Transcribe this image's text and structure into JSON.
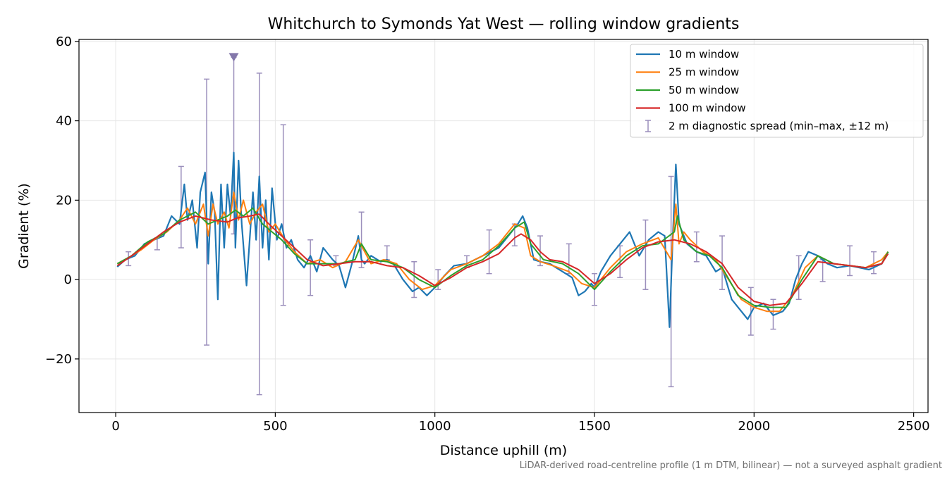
{
  "chart_data": {
    "type": "line",
    "title": "Whitchurch to Symonds Yat West — rolling window gradients",
    "xlabel": "Distance uphill (m)",
    "ylabel": "Gradient (%)",
    "xlim": [
      -115,
      2545
    ],
    "ylim": [
      -33.5,
      60.5
    ],
    "x_ticks": [
      0,
      500,
      1000,
      1500,
      2000,
      2500
    ],
    "x_tick_labels": [
      "0",
      "500",
      "1000",
      "1500",
      "2000",
      "2500"
    ],
    "y_ticks": [
      -20,
      0,
      20,
      40,
      60
    ],
    "y_tick_labels": [
      "−20",
      "0",
      "20",
      "40",
      "60"
    ],
    "grid": true,
    "legend_position": "top-right",
    "footnote": "LiDAR-derived road-centreline profile (1 m DTM, bilinear) — not a surveyed asphalt gradient",
    "series": [
      {
        "name": "10 m window",
        "color": "#1f77b4",
        "x": [
          5,
          30,
          60,
          90,
          120,
          150,
          175,
          200,
          215,
          225,
          240,
          255,
          265,
          280,
          290,
          300,
          310,
          320,
          330,
          340,
          350,
          360,
          370,
          375,
          385,
          395,
          410,
          430,
          440,
          450,
          460,
          470,
          480,
          490,
          505,
          520,
          535,
          550,
          570,
          590,
          610,
          630,
          650,
          680,
          700,
          720,
          740,
          760,
          770,
          780,
          800,
          830,
          850,
          870,
          900,
          930,
          950,
          975,
          1000,
          1030,
          1060,
          1100,
          1150,
          1200,
          1240,
          1260,
          1275,
          1290,
          1310,
          1330,
          1360,
          1400,
          1430,
          1450,
          1470,
          1490,
          1500,
          1520,
          1550,
          1580,
          1610,
          1640,
          1670,
          1700,
          1720,
          1735,
          1745,
          1755,
          1765,
          1775,
          1790,
          1820,
          1850,
          1880,
          1900,
          1930,
          1960,
          1980,
          2000,
          2030,
          2060,
          2090,
          2110,
          2130,
          2150,
          2170,
          2200,
          2230,
          2260,
          2300,
          2330,
          2360,
          2400,
          2420
        ],
        "y": [
          3.2,
          5.0,
          6.0,
          9.0,
          10.0,
          11.0,
          16.0,
          14.0,
          24.0,
          15.0,
          20.0,
          8.0,
          22.0,
          27.0,
          4.0,
          22.0,
          17.0,
          -5.0,
          24.0,
          8.0,
          24.0,
          16.0,
          32.0,
          8.0,
          30.0,
          14.0,
          -1.5,
          22.0,
          10.0,
          26.0,
          8.0,
          20.0,
          5.0,
          23.0,
          10.0,
          14.0,
          8.0,
          10.0,
          5.0,
          3.0,
          6.0,
          2.0,
          8.0,
          5.0,
          3.5,
          -2.0,
          4.0,
          11.0,
          5.0,
          4.0,
          6.0,
          4.5,
          5.0,
          4.0,
          0.0,
          -3.0,
          -2.0,
          -4.0,
          -2.0,
          1.0,
          3.5,
          4.0,
          6.0,
          8.0,
          12.0,
          14.0,
          16.0,
          13.0,
          5.0,
          4.5,
          4.0,
          2.0,
          0.5,
          -4.0,
          -3.0,
          -1.0,
          -2.0,
          2.0,
          6.0,
          9.0,
          12.0,
          6.0,
          10.0,
          12.0,
          11.0,
          -12.0,
          10.0,
          29.0,
          14.0,
          12.0,
          9.0,
          7.0,
          6.0,
          2.0,
          3.0,
          -5.0,
          -8.0,
          -10.0,
          -7.0,
          -6.0,
          -9.0,
          -8.0,
          -6.0,
          0.0,
          4.0,
          7.0,
          6.0,
          4.0,
          3.0,
          3.5,
          3.0,
          2.5,
          4.0,
          7.0
        ]
      },
      {
        "name": "25 m window",
        "color": "#ff7f0e",
        "x": [
          5,
          40,
          80,
          120,
          160,
          200,
          225,
          250,
          275,
          290,
          305,
          320,
          340,
          355,
          370,
          385,
          400,
          420,
          440,
          460,
          480,
          500,
          530,
          560,
          600,
          640,
          680,
          720,
          760,
          800,
          840,
          880,
          920,
          960,
          1000,
          1050,
          1100,
          1150,
          1200,
          1250,
          1280,
          1300,
          1330,
          1370,
          1420,
          1460,
          1500,
          1550,
          1600,
          1650,
          1700,
          1740,
          1755,
          1765,
          1780,
          1800,
          1840,
          1880,
          1920,
          1960,
          2000,
          2040,
          2080,
          2120,
          2160,
          2200,
          2250,
          2300,
          2350,
          2400,
          2420
        ],
        "y": [
          4.0,
          5.5,
          7.5,
          10.0,
          12.0,
          15.0,
          18.0,
          14.0,
          19.0,
          11.0,
          19.0,
          14.0,
          17.0,
          13.0,
          22.0,
          15.0,
          20.0,
          14.0,
          17.0,
          19.0,
          12.0,
          14.0,
          10.0,
          7.0,
          4.0,
          5.0,
          3.0,
          4.5,
          10.0,
          4.0,
          5.0,
          4.0,
          0.0,
          -2.5,
          -1.5,
          2.5,
          4.0,
          6.0,
          9.0,
          14.0,
          13.0,
          6.0,
          4.5,
          3.5,
          2.0,
          -1.0,
          -2.0,
          3.0,
          7.0,
          9.0,
          10.5,
          5.0,
          19.0,
          9.0,
          12.0,
          10.0,
          7.0,
          5.0,
          0.0,
          -5.0,
          -7.0,
          -8.0,
          -8.0,
          -4.0,
          3.0,
          6.0,
          4.0,
          3.5,
          3.0,
          5.0,
          7.0
        ]
      },
      {
        "name": "50 m window",
        "color": "#2ca02c",
        "x": [
          5,
          50,
          100,
          150,
          200,
          250,
          290,
          320,
          350,
          375,
          400,
          430,
          460,
          490,
          520,
          560,
          600,
          650,
          700,
          750,
          770,
          800,
          850,
          900,
          950,
          1000,
          1050,
          1100,
          1150,
          1200,
          1250,
          1280,
          1300,
          1340,
          1400,
          1450,
          1500,
          1550,
          1600,
          1650,
          1700,
          1750,
          1760,
          1780,
          1820,
          1860,
          1900,
          1950,
          2000,
          2050,
          2100,
          2150,
          2200,
          2250,
          2300,
          2350,
          2400,
          2420
        ],
        "y": [
          4.0,
          6.0,
          9.5,
          11.5,
          15.0,
          17.0,
          14.0,
          15.0,
          16.0,
          17.5,
          16.0,
          18.0,
          14.0,
          12.0,
          10.0,
          6.5,
          4.0,
          4.0,
          4.0,
          5.0,
          9.0,
          5.0,
          4.5,
          3.0,
          0.0,
          -2.0,
          1.0,
          3.5,
          5.0,
          8.5,
          13.0,
          14.5,
          9.0,
          5.0,
          4.0,
          1.5,
          -2.5,
          2.0,
          6.0,
          8.5,
          9.0,
          12.0,
          16.0,
          10.0,
          7.0,
          6.0,
          3.0,
          -4.0,
          -6.5,
          -7.0,
          -7.0,
          0.0,
          6.0,
          4.0,
          3.5,
          3.0,
          4.0,
          7.0
        ]
      },
      {
        "name": "100 m window",
        "color": "#d62728",
        "x": [
          5,
          50,
          100,
          150,
          200,
          250,
          300,
          350,
          380,
          420,
          450,
          480,
          520,
          560,
          600,
          650,
          700,
          750,
          800,
          850,
          900,
          950,
          1000,
          1050,
          1100,
          1150,
          1200,
          1250,
          1270,
          1300,
          1330,
          1360,
          1400,
          1450,
          1500,
          1550,
          1600,
          1650,
          1700,
          1750,
          1800,
          1850,
          1900,
          1950,
          2000,
          2050,
          2100,
          2150,
          2200,
          2250,
          2300,
          2350,
          2400,
          2420
        ],
        "y": [
          3.5,
          6.0,
          9.0,
          12.0,
          14.5,
          16.0,
          15.0,
          14.5,
          15.5,
          16.0,
          16.5,
          14.0,
          11.0,
          8.0,
          5.0,
          3.5,
          4.0,
          4.5,
          4.5,
          3.5,
          3.0,
          1.0,
          -1.5,
          0.5,
          3.0,
          4.5,
          6.5,
          10.5,
          11.5,
          10.0,
          7.0,
          5.0,
          4.5,
          2.5,
          -1.0,
          1.5,
          5.0,
          8.0,
          9.5,
          10.0,
          9.0,
          7.0,
          4.0,
          -2.0,
          -5.5,
          -6.5,
          -6.0,
          -1.0,
          4.5,
          4.0,
          3.5,
          3.0,
          4.0,
          6.5
        ]
      }
    ],
    "diagnostic": {
      "name": "2 m diagnostic spread (min–max, ±12 m)",
      "color": "#9b8fbc",
      "bars": [
        {
          "x": 40,
          "lo": 3.5,
          "hi": 7.0
        },
        {
          "x": 130,
          "lo": 7.5,
          "hi": 10.5
        },
        {
          "x": 205,
          "lo": 8.0,
          "hi": 28.5
        },
        {
          "x": 285,
          "lo": -16.5,
          "hi": 50.5
        },
        {
          "x": 370,
          "lo": 11.5,
          "hi": 56.0
        },
        {
          "x": 450,
          "lo": -29.0,
          "hi": 52.0
        },
        {
          "x": 525,
          "lo": -6.5,
          "hi": 39.0
        },
        {
          "x": 610,
          "lo": -4.0,
          "hi": 10.0
        },
        {
          "x": 690,
          "lo": 3.5,
          "hi": 6.0
        },
        {
          "x": 770,
          "lo": 3.0,
          "hi": 17.0
        },
        {
          "x": 850,
          "lo": 5.0,
          "hi": 8.5
        },
        {
          "x": 935,
          "lo": -4.5,
          "hi": 4.5
        },
        {
          "x": 1010,
          "lo": -2.5,
          "hi": 2.5
        },
        {
          "x": 1100,
          "lo": 3.0,
          "hi": 6.0
        },
        {
          "x": 1170,
          "lo": 1.5,
          "hi": 12.5
        },
        {
          "x": 1250,
          "lo": 8.5,
          "hi": 14.0
        },
        {
          "x": 1330,
          "lo": 3.5,
          "hi": 11.0
        },
        {
          "x": 1420,
          "lo": 1.5,
          "hi": 9.0
        },
        {
          "x": 1500,
          "lo": -6.5,
          "hi": 1.5
        },
        {
          "x": 1580,
          "lo": 0.5,
          "hi": 8.5
        },
        {
          "x": 1660,
          "lo": -2.5,
          "hi": 15.0
        },
        {
          "x": 1740,
          "lo": -27.0,
          "hi": 26.0
        },
        {
          "x": 1820,
          "lo": 4.5,
          "hi": 12.0
        },
        {
          "x": 1900,
          "lo": -2.5,
          "hi": 11.0
        },
        {
          "x": 1990,
          "lo": -14.0,
          "hi": -2.0
        },
        {
          "x": 2060,
          "lo": -12.5,
          "hi": -5.0
        },
        {
          "x": 2140,
          "lo": -5.0,
          "hi": 6.0
        },
        {
          "x": 2215,
          "lo": -0.5,
          "hi": 5.0
        },
        {
          "x": 2300,
          "lo": 1.0,
          "hi": 8.5
        },
        {
          "x": 2375,
          "lo": 1.5,
          "hi": 7.0
        }
      ],
      "clipped_marker": {
        "x": 370,
        "y": 56.0
      }
    }
  }
}
